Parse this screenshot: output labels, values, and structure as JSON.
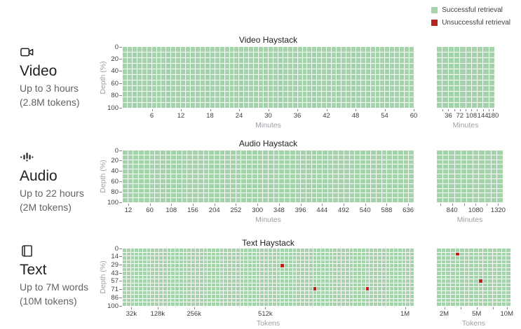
{
  "colors": {
    "success": "#a5d3ab",
    "fail": "#b3251d"
  },
  "legend": {
    "items": [
      {
        "label": "Successful retrieval",
        "color": "#a5d3ab"
      },
      {
        "label": "Unsuccessful retrieval",
        "color": "#b3251d"
      }
    ]
  },
  "modalities": [
    {
      "id": "video",
      "icon": "videocam-icon",
      "title": "Video",
      "subtitle_lines": [
        "Up to 3 hours",
        "(2.8M tokens)"
      ],
      "chart_title": "Video Haystack",
      "y_axis_label": "Depth (%)",
      "y_ticks": [
        {
          "f": 0,
          "l": "0"
        },
        {
          "f": 0.2,
          "l": "20"
        },
        {
          "f": 0.4,
          "l": "40"
        },
        {
          "f": 0.6,
          "l": "60"
        },
        {
          "f": 0.8,
          "l": "80"
        },
        {
          "f": 1,
          "l": "100"
        }
      ],
      "main": {
        "cols": 60,
        "rows": 11,
        "x_label": "Minutes",
        "fail_cells": [],
        "x_ticks": [
          {
            "f": 0.1,
            "l": "6"
          },
          {
            "f": 0.2,
            "l": "12"
          },
          {
            "f": 0.3,
            "l": "18"
          },
          {
            "f": 0.4,
            "l": "24"
          },
          {
            "f": 0.5,
            "l": "30"
          },
          {
            "f": 0.6,
            "l": "36"
          },
          {
            "f": 0.7,
            "l": "42"
          },
          {
            "f": 0.8,
            "l": "48"
          },
          {
            "f": 0.9,
            "l": "54"
          },
          {
            "f": 1,
            "l": "60"
          }
        ]
      },
      "side": {
        "cols": 10,
        "rows": 11,
        "x_label": "Minutes",
        "fail_cells": [],
        "x_ticks": [
          {
            "f": 0.1,
            "l": ""
          },
          {
            "f": 0.2,
            "l": "36"
          },
          {
            "f": 0.3,
            "l": ""
          },
          {
            "f": 0.4,
            "l": "72"
          },
          {
            "f": 0.5,
            "l": ""
          },
          {
            "f": 0.6,
            "l": "108"
          },
          {
            "f": 0.7,
            "l": ""
          },
          {
            "f": 0.8,
            "l": "144"
          },
          {
            "f": 0.9,
            "l": ""
          },
          {
            "f": 0.98,
            "l": "180"
          }
        ]
      }
    },
    {
      "id": "audio",
      "icon": "audio-waveform-icon",
      "title": "Audio",
      "subtitle_lines": [
        "Up to 22 hours",
        "(2M tokens)"
      ],
      "chart_title": "Audio Haystack",
      "y_axis_label": "Depth (%)",
      "y_ticks": [
        {
          "f": 0,
          "l": "0"
        },
        {
          "f": 0.2,
          "l": "20"
        },
        {
          "f": 0.4,
          "l": "40"
        },
        {
          "f": 0.6,
          "l": "60"
        },
        {
          "f": 0.8,
          "l": "80"
        },
        {
          "f": 1,
          "l": "100"
        }
      ],
      "main": {
        "cols": 54,
        "rows": 11,
        "x_label": "Minutes",
        "fail_cells": [],
        "x_ticks": [
          {
            "f": 0.019,
            "l": "12"
          },
          {
            "f": 0.093,
            "l": "60"
          },
          {
            "f": 0.167,
            "l": "108"
          },
          {
            "f": 0.241,
            "l": "156"
          },
          {
            "f": 0.315,
            "l": "204"
          },
          {
            "f": 0.389,
            "l": "252"
          },
          {
            "f": 0.463,
            "l": "300"
          },
          {
            "f": 0.537,
            "l": "348"
          },
          {
            "f": 0.611,
            "l": "396"
          },
          {
            "f": 0.685,
            "l": "444"
          },
          {
            "f": 0.759,
            "l": "492"
          },
          {
            "f": 0.833,
            "l": "540"
          },
          {
            "f": 0.907,
            "l": "588"
          },
          {
            "f": 0.981,
            "l": "636"
          }
        ]
      },
      "side": {
        "cols": 11,
        "rows": 11,
        "x_label": "Minutes",
        "fail_cells": [],
        "x_ticks": [
          {
            "f": 0.05,
            "l": ""
          },
          {
            "f": 0.23,
            "l": "840"
          },
          {
            "f": 0.41,
            "l": ""
          },
          {
            "f": 0.59,
            "l": "1080"
          },
          {
            "f": 0.76,
            "l": ""
          },
          {
            "f": 0.93,
            "l": "1320"
          }
        ]
      }
    },
    {
      "id": "text",
      "icon": "book-icon",
      "title": "Text",
      "subtitle_lines": [
        "Up to 7M words",
        "(10M tokens)"
      ],
      "chart_title": "Text Haystack",
      "y_axis_label": "Depth (%)",
      "y_ticks": [
        {
          "f": 0,
          "l": "0"
        },
        {
          "f": 0.143,
          "l": "14"
        },
        {
          "f": 0.286,
          "l": "29"
        },
        {
          "f": 0.429,
          "l": "43"
        },
        {
          "f": 0.571,
          "l": "57"
        },
        {
          "f": 0.714,
          "l": "71"
        },
        {
          "f": 0.857,
          "l": "86"
        },
        {
          "f": 1,
          "l": "100"
        }
      ],
      "main": {
        "cols": 72,
        "rows": 15,
        "x_label": "Tokens",
        "fail_cells": [
          [
            4,
            39
          ],
          [
            10,
            47
          ],
          [
            10,
            60
          ]
        ],
        "x_ticks": [
          {
            "f": 0.03,
            "l": "32k"
          },
          {
            "f": 0.12,
            "l": "128k"
          },
          {
            "f": 0.245,
            "l": "256k"
          },
          {
            "f": 0.49,
            "l": "512k"
          },
          {
            "f": 0.97,
            "l": "1M"
          }
        ]
      },
      "side": {
        "cols": 16,
        "rows": 15,
        "x_label": "Tokens",
        "fail_cells": [
          [
            1,
            4
          ],
          [
            8,
            9
          ]
        ],
        "x_ticks": [
          {
            "f": 0.1,
            "l": "2M"
          },
          {
            "f": 0.32,
            "l": ""
          },
          {
            "f": 0.54,
            "l": "5M"
          },
          {
            "f": 0.76,
            "l": ""
          },
          {
            "f": 0.95,
            "l": "10M"
          }
        ]
      }
    }
  ],
  "chart_data": [
    {
      "type": "heatmap",
      "title": "Video Haystack",
      "modality": "Video",
      "context": "Up to 3 hours (2.8M tokens)",
      "xlabel": "Minutes",
      "ylabel": "Depth (%)",
      "x_ticks_main": [
        6,
        12,
        18,
        24,
        30,
        36,
        42,
        48,
        54,
        60
      ],
      "x_ticks_extended": [
        36,
        72,
        108,
        144,
        180
      ],
      "y_ticks": [
        0,
        20,
        40,
        60,
        80,
        100
      ],
      "legend": [
        "Successful retrieval",
        "Unsuccessful retrieval"
      ],
      "result": "all cells successful",
      "unsuccessful_points": []
    },
    {
      "type": "heatmap",
      "title": "Audio Haystack",
      "modality": "Audio",
      "context": "Up to 22 hours (2M tokens)",
      "xlabel": "Minutes",
      "ylabel": "Depth (%)",
      "x_ticks_main": [
        12,
        60,
        108,
        156,
        204,
        252,
        300,
        348,
        396,
        444,
        492,
        540,
        588,
        636
      ],
      "x_ticks_extended": [
        840,
        1080,
        1320
      ],
      "y_ticks": [
        0,
        20,
        40,
        60,
        80,
        100
      ],
      "legend": [
        "Successful retrieval",
        "Unsuccessful retrieval"
      ],
      "result": "all cells successful",
      "unsuccessful_points": []
    },
    {
      "type": "heatmap",
      "title": "Text Haystack",
      "modality": "Text",
      "context": "Up to 7M words (10M tokens)",
      "xlabel": "Tokens",
      "ylabel": "Depth (%)",
      "x_ticks_main": [
        "32k",
        "128k",
        "256k",
        "512k",
        "1M"
      ],
      "x_ticks_extended": [
        "2M",
        "5M",
        "10M"
      ],
      "y_ticks": [
        0,
        14,
        29,
        43,
        57,
        71,
        86,
        100
      ],
      "legend": [
        "Successful retrieval",
        "Unsuccessful retrieval"
      ],
      "result": "all cells successful except 5",
      "unsuccessful_points": [
        {
          "tokens": "~570k",
          "depth_pct": 31
        },
        {
          "tokens": "~680k",
          "depth_pct": 71
        },
        {
          "tokens": "~870k",
          "depth_pct": 71
        },
        {
          "tokens": "~3M",
          "depth_pct": 10
        },
        {
          "tokens": "~5.5M",
          "depth_pct": 57
        }
      ]
    }
  ]
}
